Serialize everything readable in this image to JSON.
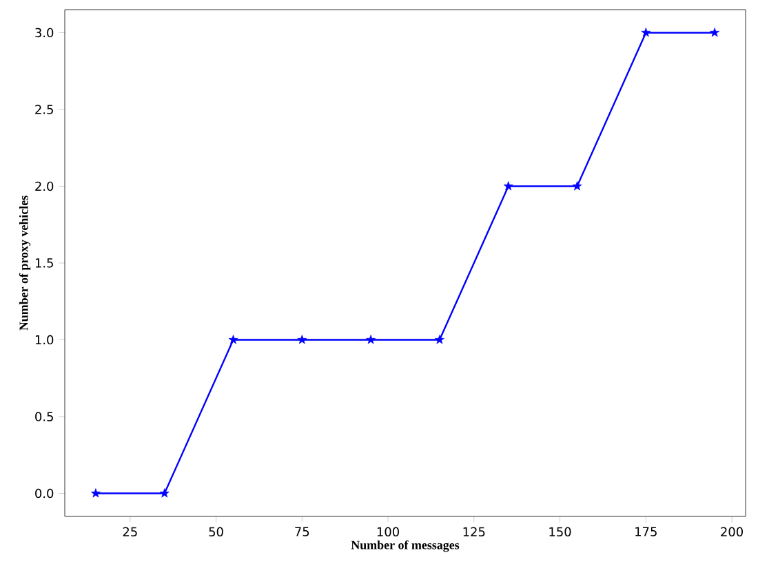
{
  "chart_data": {
    "type": "line",
    "xlabel": "Number of messages",
    "ylabel": "Number of proxy vehicles",
    "x": [
      15,
      35,
      55,
      75,
      95,
      115,
      135,
      155,
      175,
      195
    ],
    "series": [
      {
        "color": "#0000ff",
        "values": [
          0,
          0,
          1,
          1,
          1,
          1,
          2,
          2,
          3,
          3
        ]
      }
    ],
    "xlim": [
      6,
      204
    ],
    "ylim": [
      -0.15,
      3.15
    ],
    "xticks": [
      25,
      50,
      75,
      100,
      125,
      150,
      175,
      200
    ],
    "yticks": [
      {
        "value": 0,
        "label": "0.0"
      },
      {
        "value": 0.5,
        "label": "0.5"
      },
      {
        "value": 1,
        "label": "1.0"
      },
      {
        "value": 1.5,
        "label": "1.5"
      },
      {
        "value": 2,
        "label": "2.0"
      },
      {
        "value": 2.5,
        "label": "2.5"
      },
      {
        "value": 3,
        "label": "3.0"
      }
    ],
    "marker": "star",
    "line_style": "solid",
    "grid": false
  }
}
